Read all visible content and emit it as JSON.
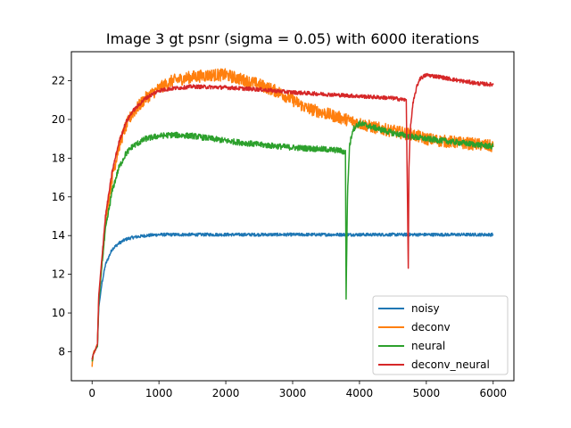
{
  "chart_data": {
    "type": "line",
    "title": "Image 3 gt psnr (sigma = 0.05) with 6000 iterations",
    "xlabel": "",
    "ylabel": "",
    "xlim": [
      -310,
      6310
    ],
    "ylim": [
      6.5,
      23.5
    ],
    "xticks": [
      0,
      1000,
      2000,
      3000,
      4000,
      5000,
      6000
    ],
    "yticks": [
      8,
      10,
      12,
      14,
      16,
      18,
      20,
      22
    ],
    "grid": false,
    "legend_position": "lower-right",
    "series": [
      {
        "name": "noisy",
        "color": "#1f77b4",
        "x": [
          0,
          20,
          50,
          80,
          100,
          150,
          200,
          300,
          400,
          500,
          600,
          800,
          1000,
          1500,
          2000,
          2500,
          3000,
          3500,
          4000,
          4500,
          5000,
          5500,
          6000
        ],
        "y": [
          7.6,
          7.9,
          8.1,
          8.3,
          10.3,
          11.6,
          12.5,
          13.3,
          13.6,
          13.8,
          13.9,
          14.0,
          14.05,
          14.05,
          14.05,
          14.05,
          14.05,
          14.05,
          14.05,
          14.05,
          14.05,
          14.05,
          14.05
        ],
        "noise": 0.08
      },
      {
        "name": "deconv",
        "color": "#ff7f0e",
        "x": [
          0,
          20,
          50,
          80,
          100,
          150,
          200,
          300,
          400,
          500,
          600,
          800,
          1000,
          1200,
          1500,
          1800,
          2000,
          2200,
          2500,
          2800,
          3000,
          3200,
          3500,
          3800,
          4000,
          4200,
          4500,
          4800,
          5000,
          5200,
          5500,
          5800,
          6000
        ],
        "y": [
          7.3,
          7.9,
          8.1,
          8.4,
          10.8,
          12.8,
          14.8,
          17.0,
          18.6,
          19.6,
          20.3,
          21.1,
          21.6,
          22.0,
          22.2,
          22.3,
          22.3,
          22.1,
          21.8,
          21.4,
          21.0,
          20.6,
          20.3,
          20.0,
          19.8,
          19.6,
          19.4,
          19.2,
          19.0,
          18.9,
          18.8,
          18.7,
          18.6
        ],
        "noise": 0.32
      },
      {
        "name": "neural",
        "color": "#2ca02c",
        "x": [
          0,
          20,
          50,
          80,
          100,
          150,
          200,
          300,
          400,
          500,
          600,
          800,
          1000,
          1200,
          1500,
          2000,
          2500,
          3000,
          3500,
          3700,
          3790,
          3800,
          3820,
          3850,
          3900,
          4000,
          4200,
          4500,
          4800,
          5000,
          5500,
          6000
        ],
        "y": [
          7.5,
          7.9,
          8.1,
          8.3,
          10.5,
          12.6,
          14.3,
          16.3,
          17.5,
          18.2,
          18.6,
          19.0,
          19.15,
          19.2,
          19.15,
          18.9,
          18.7,
          18.55,
          18.45,
          18.4,
          18.3,
          10.8,
          16.0,
          18.6,
          19.5,
          19.8,
          19.6,
          19.3,
          19.1,
          19.0,
          18.8,
          18.6
        ],
        "noise": 0.15
      },
      {
        "name": "deconv_neural",
        "color": "#d62728",
        "x": [
          0,
          20,
          50,
          80,
          100,
          150,
          200,
          300,
          400,
          500,
          600,
          800,
          1000,
          1200,
          1500,
          2000,
          2500,
          3000,
          3500,
          4000,
          4500,
          4700,
          4730,
          4740,
          4760,
          4800,
          4850,
          4900,
          5000,
          5200,
          5500,
          5800,
          6000
        ],
        "y": [
          7.6,
          7.9,
          8.1,
          8.4,
          10.9,
          13.0,
          15.0,
          17.3,
          18.8,
          19.8,
          20.4,
          21.1,
          21.5,
          21.6,
          21.7,
          21.65,
          21.55,
          21.4,
          21.3,
          21.2,
          21.1,
          21.0,
          12.4,
          17.5,
          19.5,
          20.8,
          21.6,
          22.1,
          22.3,
          22.2,
          22.0,
          21.85,
          21.8
        ],
        "noise": 0.1
      }
    ]
  }
}
